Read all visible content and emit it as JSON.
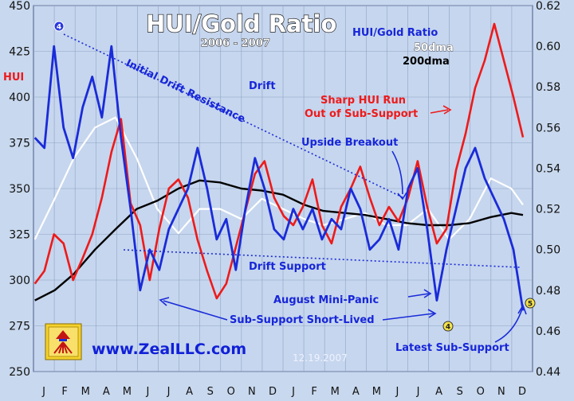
{
  "chart_data": {
    "type": "line",
    "title": "HUI/Gold Ratio",
    "subtitle": "2006 - 2007",
    "left_axis": {
      "label": "HUI",
      "min": 250,
      "max": 450,
      "ticks": [
        "450",
        "425",
        "400",
        "375",
        "350",
        "325",
        "300",
        "275",
        "250"
      ],
      "tick_values": [
        450,
        425,
        400,
        375,
        350,
        325,
        300,
        275,
        250
      ]
    },
    "right_axis": {
      "min": 0.44,
      "max": 0.62,
      "ticks": [
        "0.62",
        "0.60",
        "0.58",
        "0.56",
        "0.54",
        "0.52",
        "0.50",
        "0.48",
        "0.46",
        "0.44"
      ],
      "tick_values": [
        0.62,
        0.6,
        0.58,
        0.56,
        0.54,
        0.52,
        0.5,
        0.48,
        0.46,
        0.44
      ]
    },
    "x_axis": {
      "months": [
        "J",
        "F",
        "M",
        "A",
        "M",
        "J",
        "J",
        "A",
        "S",
        "O",
        "N",
        "D",
        "J",
        "F",
        "M",
        "A",
        "M",
        "J",
        "J",
        "A",
        "S",
        "O",
        "N",
        "D"
      ],
      "start": "2006-01",
      "end": "2007-12"
    },
    "legend": [
      {
        "label": "HUI/Gold Ratio",
        "color": "#1a2bd9"
      },
      {
        "label": "50dma",
        "color": "#ffffff"
      },
      {
        "label": "200dma",
        "color": "#000000"
      }
    ],
    "series": [
      {
        "name": "HUI",
        "axis": "left",
        "color": "#ee1a1a",
        "points": [
          [
            "2006-01-03",
            298
          ],
          [
            "2006-01-17",
            305
          ],
          [
            "2006-01-31",
            325
          ],
          [
            "2006-02-14",
            320
          ],
          [
            "2006-02-28",
            300
          ],
          [
            "2006-03-14",
            312
          ],
          [
            "2006-03-28",
            325
          ],
          [
            "2006-04-11",
            345
          ],
          [
            "2006-04-25",
            370
          ],
          [
            "2006-05-09",
            388
          ],
          [
            "2006-05-23",
            342
          ],
          [
            "2006-06-06",
            330
          ],
          [
            "2006-06-20",
            300
          ],
          [
            "2006-07-04",
            328
          ],
          [
            "2006-07-18",
            350
          ],
          [
            "2006-08-01",
            355
          ],
          [
            "2006-08-15",
            345
          ],
          [
            "2006-08-29",
            322
          ],
          [
            "2006-09-12",
            305
          ],
          [
            "2006-09-26",
            290
          ],
          [
            "2006-10-10",
            298
          ],
          [
            "2006-10-24",
            318
          ],
          [
            "2006-11-07",
            338
          ],
          [
            "2006-11-21",
            358
          ],
          [
            "2006-12-05",
            365
          ],
          [
            "2006-12-19",
            345
          ],
          [
            "2007-01-02",
            335
          ],
          [
            "2007-01-16",
            330
          ],
          [
            "2007-01-30",
            340
          ],
          [
            "2007-02-13",
            355
          ],
          [
            "2007-02-27",
            330
          ],
          [
            "2007-03-13",
            320
          ],
          [
            "2007-03-27",
            340
          ],
          [
            "2007-04-10",
            350
          ],
          [
            "2007-04-24",
            362
          ],
          [
            "2007-05-08",
            345
          ],
          [
            "2007-05-22",
            330
          ],
          [
            "2007-06-05",
            340
          ],
          [
            "2007-06-19",
            332
          ],
          [
            "2007-07-03",
            345
          ],
          [
            "2007-07-17",
            365
          ],
          [
            "2007-07-31",
            340
          ],
          [
            "2007-08-14",
            320
          ],
          [
            "2007-08-28",
            328
          ],
          [
            "2007-09-11",
            360
          ],
          [
            "2007-09-25",
            380
          ],
          [
            "2007-10-09",
            405
          ],
          [
            "2007-10-23",
            420
          ],
          [
            "2007-11-06",
            440
          ],
          [
            "2007-11-20",
            420
          ],
          [
            "2007-12-04",
            400
          ],
          [
            "2007-12-18",
            378
          ]
        ]
      },
      {
        "name": "HUI/Gold Ratio",
        "axis": "right",
        "color": "#1a2bd9",
        "points": [
          [
            "2006-01-03",
            0.555
          ],
          [
            "2006-01-17",
            0.55
          ],
          [
            "2006-01-31",
            0.6
          ],
          [
            "2006-02-14",
            0.56
          ],
          [
            "2006-02-28",
            0.545
          ],
          [
            "2006-03-14",
            0.57
          ],
          [
            "2006-03-28",
            0.585
          ],
          [
            "2006-04-11",
            0.565
          ],
          [
            "2006-04-25",
            0.6
          ],
          [
            "2006-05-09",
            0.555
          ],
          [
            "2006-05-23",
            0.52
          ],
          [
            "2006-06-06",
            0.48
          ],
          [
            "2006-06-20",
            0.5
          ],
          [
            "2006-07-04",
            0.49
          ],
          [
            "2006-07-18",
            0.51
          ],
          [
            "2006-08-01",
            0.52
          ],
          [
            "2006-08-15",
            0.53
          ],
          [
            "2006-08-29",
            0.55
          ],
          [
            "2006-09-12",
            0.53
          ],
          [
            "2006-09-26",
            0.505
          ],
          [
            "2006-10-10",
            0.515
          ],
          [
            "2006-10-24",
            0.49
          ],
          [
            "2006-11-07",
            0.52
          ],
          [
            "2006-11-21",
            0.545
          ],
          [
            "2006-12-05",
            0.53
          ],
          [
            "2006-12-19",
            0.51
          ],
          [
            "2007-01-02",
            0.505
          ],
          [
            "2007-01-16",
            0.52
          ],
          [
            "2007-01-30",
            0.51
          ],
          [
            "2007-02-13",
            0.52
          ],
          [
            "2007-02-27",
            0.505
          ],
          [
            "2007-03-13",
            0.515
          ],
          [
            "2007-03-27",
            0.51
          ],
          [
            "2007-04-10",
            0.53
          ],
          [
            "2007-04-24",
            0.52
          ],
          [
            "2007-05-08",
            0.5
          ],
          [
            "2007-05-22",
            0.505
          ],
          [
            "2007-06-05",
            0.515
          ],
          [
            "2007-06-19",
            0.5
          ],
          [
            "2007-07-03",
            0.53
          ],
          [
            "2007-07-17",
            0.54
          ],
          [
            "2007-07-31",
            0.51
          ],
          [
            "2007-08-14",
            0.475
          ],
          [
            "2007-08-28",
            0.5
          ],
          [
            "2007-09-11",
            0.52
          ],
          [
            "2007-09-25",
            0.54
          ],
          [
            "2007-10-09",
            0.55
          ],
          [
            "2007-10-23",
            0.535
          ],
          [
            "2007-11-06",
            0.525
          ],
          [
            "2007-11-20",
            0.515
          ],
          [
            "2007-12-04",
            0.5
          ],
          [
            "2007-12-18",
            0.47
          ]
        ]
      },
      {
        "name": "50dma",
        "axis": "right",
        "color": "#ffffff",
        "points": [
          [
            "2006-01-03",
            0.505
          ],
          [
            "2006-02-01",
            0.525
          ],
          [
            "2006-03-01",
            0.545
          ],
          [
            "2006-04-01",
            0.56
          ],
          [
            "2006-05-01",
            0.565
          ],
          [
            "2006-06-01",
            0.545
          ],
          [
            "2006-07-01",
            0.52
          ],
          [
            "2006-08-01",
            0.508
          ],
          [
            "2006-09-01",
            0.52
          ],
          [
            "2006-10-01",
            0.52
          ],
          [
            "2006-11-01",
            0.515
          ],
          [
            "2006-12-01",
            0.525
          ],
          [
            "2007-01-01",
            0.52
          ],
          [
            "2007-02-01",
            0.515
          ],
          [
            "2007-03-01",
            0.512
          ],
          [
            "2007-04-01",
            0.515
          ],
          [
            "2007-05-01",
            0.518
          ],
          [
            "2007-06-01",
            0.512
          ],
          [
            "2007-07-01",
            0.512
          ],
          [
            "2007-08-01",
            0.52
          ],
          [
            "2007-09-01",
            0.505
          ],
          [
            "2007-10-01",
            0.515
          ],
          [
            "2007-11-01",
            0.535
          ],
          [
            "2007-12-01",
            0.53
          ],
          [
            "2007-12-18",
            0.522
          ]
        ]
      },
      {
        "name": "200dma",
        "axis": "right",
        "color": "#000000",
        "points": [
          [
            "2006-01-03",
            0.475
          ],
          [
            "2006-02-01",
            0.48
          ],
          [
            "2006-03-01",
            0.488
          ],
          [
            "2006-04-01",
            0.5
          ],
          [
            "2006-05-01",
            0.51
          ],
          [
            "2006-06-01",
            0.52
          ],
          [
            "2006-07-01",
            0.524
          ],
          [
            "2006-08-01",
            0.53
          ],
          [
            "2006-09-01",
            0.534
          ],
          [
            "2006-10-01",
            0.533
          ],
          [
            "2006-11-01",
            0.53
          ],
          [
            "2006-12-01",
            0.529
          ],
          [
            "2007-01-01",
            0.527
          ],
          [
            "2007-02-01",
            0.522
          ],
          [
            "2007-03-01",
            0.519
          ],
          [
            "2007-04-01",
            0.518
          ],
          [
            "2007-05-01",
            0.517
          ],
          [
            "2007-06-01",
            0.515
          ],
          [
            "2007-07-01",
            0.513
          ],
          [
            "2007-08-01",
            0.512
          ],
          [
            "2007-09-01",
            0.512
          ],
          [
            "2007-10-01",
            0.513
          ],
          [
            "2007-11-01",
            0.516
          ],
          [
            "2007-12-01",
            0.518
          ],
          [
            "2007-12-18",
            0.517
          ]
        ]
      }
    ],
    "annotations": [
      {
        "text": "Initial Drift Resistance",
        "color": "#1726d9"
      },
      {
        "text": "Drift",
        "color": "#1726d9"
      },
      {
        "text": "Upside Breakout",
        "color": "#1726d9"
      },
      {
        "text": "Sharp HUI Run",
        "color": "#ee1a1a"
      },
      {
        "text": "Out of Sub-Support",
        "color": "#ee1a1a"
      },
      {
        "text": "Drift Support",
        "color": "#1726d9"
      },
      {
        "text": "August Mini-Panic",
        "color": "#1726d9"
      },
      {
        "text": "Sub-Support Short-Lived",
        "color": "#1726d9"
      },
      {
        "text": "Latest Sub-Support",
        "color": "#1726d9"
      }
    ],
    "markers": [
      "4",
      "4",
      "5"
    ],
    "grid": true
  },
  "branding": {
    "url": "www.ZealLLC.com",
    "date": "12.19.2007"
  }
}
